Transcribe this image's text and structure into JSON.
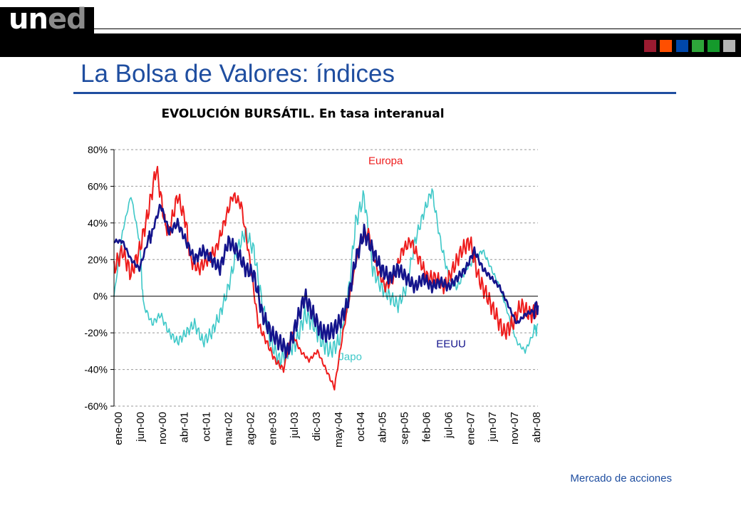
{
  "header": {
    "logo_text_a": "un",
    "logo_text_b": "ed",
    "color_squares": [
      "#9b1b30",
      "#ff4f00",
      "#0047ab",
      "#2ea63a",
      "#159a2c",
      "#b4b4b4"
    ]
  },
  "page": {
    "title": "La Bolsa de Valores: índices",
    "footer": "Mercado de acciones"
  },
  "chart_data": {
    "type": "line",
    "title": "EVOLUCIÓN BURSÁTIL. En tasa interanual",
    "xlabel": "",
    "ylabel": "",
    "ylim": [
      -60,
      80
    ],
    "yticks": [
      80,
      60,
      40,
      20,
      0,
      -20,
      -40,
      -60
    ],
    "ytick_labels": [
      "80%",
      "60%",
      "40%",
      "20%",
      "0%",
      "-20%",
      "-40%",
      "-60%"
    ],
    "xtick_labels": [
      "ene-00",
      "jun-00",
      "nov-00",
      "abr-01",
      "oct-01",
      "mar-02",
      "ago-02",
      "ene-03",
      "jul-03",
      "dic-03",
      "may-04",
      "oct-04",
      "abr-05",
      "sep-05",
      "feb-06",
      "jul-06",
      "ene-07",
      "jun-07",
      "nov-07",
      "abr-08"
    ],
    "grid": "horizontal dashed",
    "x_range_months": [
      0,
      100
    ],
    "annotations": [
      {
        "text": "Europa",
        "color": "#ee1c1c",
        "x_month": 60,
        "y": 72
      },
      {
        "text": "Japo",
        "color": "#3ec8c8",
        "x_month": 53,
        "y": -35
      },
      {
        "text": "EEUU",
        "color": "#14148c",
        "x_month": 76,
        "y": -28
      }
    ],
    "series": [
      {
        "name": "Japo",
        "color": "#3ec8c8",
        "x": [
          0,
          2,
          4,
          6,
          7,
          9,
          11,
          13,
          15,
          17,
          19,
          21,
          23,
          25,
          27,
          29,
          31,
          33,
          35,
          37,
          39,
          41,
          43,
          45,
          47,
          49,
          51,
          53,
          55,
          57,
          59,
          61,
          63,
          65,
          67,
          69,
          71,
          73,
          75,
          77,
          79,
          81,
          83,
          85,
          87,
          89,
          91,
          93,
          95,
          97,
          99,
          100
        ],
        "values": [
          0,
          35,
          55,
          30,
          -5,
          -15,
          -10,
          -20,
          -25,
          -20,
          -15,
          -25,
          -20,
          -10,
          5,
          25,
          35,
          25,
          -5,
          -25,
          -35,
          -30,
          -25,
          -10,
          -15,
          -25,
          -30,
          -25,
          -5,
          40,
          55,
          15,
          5,
          0,
          -5,
          5,
          30,
          45,
          58,
          30,
          10,
          5,
          15,
          20,
          25,
          15,
          5,
          -10,
          -25,
          -30,
          -20,
          -15
        ]
      },
      {
        "name": "Europa",
        "color": "#ee1c1c",
        "x": [
          0,
          2,
          4,
          6,
          8,
          10,
          12,
          13,
          15,
          17,
          18,
          20,
          22,
          24,
          26,
          28,
          30,
          32,
          34,
          36,
          38,
          40,
          42,
          44,
          46,
          48,
          50,
          52,
          54,
          56,
          58,
          60,
          62,
          64,
          66,
          68,
          70,
          72,
          74,
          76,
          78,
          80,
          82,
          84,
          86,
          88,
          90,
          92,
          94,
          96,
          98,
          100
        ],
        "values": [
          15,
          25,
          12,
          25,
          45,
          70,
          40,
          35,
          55,
          40,
          20,
          15,
          20,
          25,
          40,
          55,
          50,
          20,
          -15,
          -25,
          -35,
          -40,
          -20,
          -30,
          -35,
          -30,
          -40,
          -50,
          -20,
          5,
          30,
          35,
          15,
          5,
          10,
          25,
          30,
          20,
          10,
          10,
          5,
          15,
          25,
          30,
          10,
          0,
          -10,
          -20,
          -15,
          -5,
          -10,
          -8
        ]
      },
      {
        "name": "EEUU",
        "color": "#14148c",
        "x": [
          0,
          2,
          4,
          6,
          8,
          9,
          11,
          13,
          15,
          17,
          19,
          21,
          23,
          25,
          27,
          29,
          31,
          33,
          35,
          37,
          39,
          41,
          43,
          45,
          47,
          49,
          51,
          53,
          55,
          57,
          59,
          61,
          63,
          65,
          67,
          69,
          71,
          73,
          75,
          77,
          79,
          81,
          83,
          85,
          87,
          89,
          91,
          93,
          95,
          97,
          99,
          100
        ],
        "values": [
          30,
          30,
          20,
          15,
          30,
          35,
          50,
          35,
          40,
          30,
          20,
          25,
          20,
          15,
          30,
          25,
          15,
          12,
          -10,
          -20,
          -25,
          -30,
          -15,
          0,
          -10,
          -20,
          -20,
          -15,
          -5,
          20,
          35,
          25,
          15,
          10,
          15,
          10,
          5,
          10,
          5,
          8,
          5,
          10,
          15,
          25,
          15,
          10,
          5,
          -5,
          -15,
          -10,
          -8,
          -5
        ]
      }
    ]
  }
}
